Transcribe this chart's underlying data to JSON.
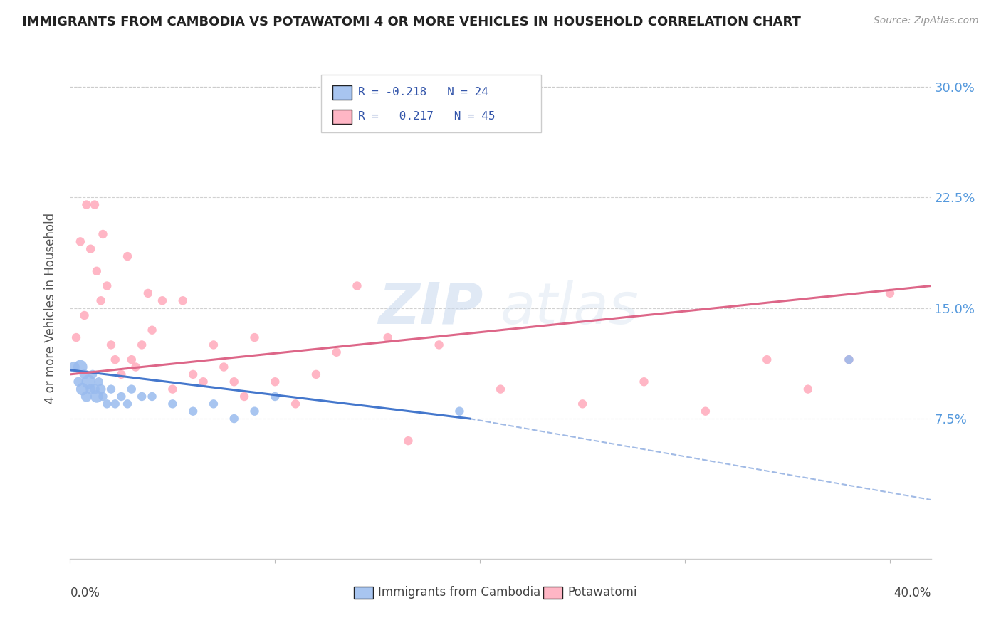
{
  "title": "IMMIGRANTS FROM CAMBODIA VS POTAWATOMI 4 OR MORE VEHICLES IN HOUSEHOLD CORRELATION CHART",
  "source_text": "Source: ZipAtlas.com",
  "ylabel": "4 or more Vehicles in Household",
  "xlim": [
    0.0,
    0.42
  ],
  "ylim": [
    -0.02,
    0.32
  ],
  "yticks": [
    0.075,
    0.15,
    0.225,
    0.3
  ],
  "ytick_labels": [
    "7.5%",
    "15.0%",
    "22.5%",
    "30.0%"
  ],
  "background_color": "#ffffff",
  "plot_bg_color": "#ffffff",
  "grid_color": "#cccccc",
  "blue_color": "#99bbee",
  "pink_color": "#ffaabb",
  "blue_line_color": "#4477cc",
  "pink_line_color": "#dd6688",
  "watermark": "ZIPatlas",
  "blue_points_x": [
    0.002,
    0.004,
    0.005,
    0.006,
    0.007,
    0.008,
    0.009,
    0.01,
    0.011,
    0.012,
    0.013,
    0.014,
    0.015,
    0.016,
    0.018,
    0.02,
    0.022,
    0.025,
    0.028,
    0.03,
    0.035,
    0.04,
    0.05,
    0.06,
    0.07,
    0.08,
    0.09,
    0.1,
    0.19,
    0.38
  ],
  "blue_points_y": [
    0.11,
    0.1,
    0.11,
    0.095,
    0.105,
    0.09,
    0.1,
    0.095,
    0.105,
    0.095,
    0.09,
    0.1,
    0.095,
    0.09,
    0.085,
    0.095,
    0.085,
    0.09,
    0.085,
    0.095,
    0.09,
    0.09,
    0.085,
    0.08,
    0.085,
    0.075,
    0.08,
    0.09,
    0.08,
    0.115
  ],
  "blue_sizes": [
    120,
    90,
    200,
    160,
    100,
    120,
    200,
    100,
    80,
    100,
    160,
    80,
    100,
    80,
    80,
    80,
    80,
    80,
    80,
    80,
    80,
    80,
    80,
    80,
    80,
    80,
    80,
    80,
    80,
    80
  ],
  "pink_points_x": [
    0.003,
    0.005,
    0.007,
    0.008,
    0.01,
    0.012,
    0.013,
    0.015,
    0.016,
    0.018,
    0.02,
    0.022,
    0.025,
    0.028,
    0.03,
    0.032,
    0.035,
    0.038,
    0.04,
    0.045,
    0.05,
    0.055,
    0.06,
    0.065,
    0.07,
    0.075,
    0.08,
    0.085,
    0.09,
    0.1,
    0.11,
    0.12,
    0.13,
    0.14,
    0.155,
    0.165,
    0.18,
    0.21,
    0.25,
    0.28,
    0.31,
    0.34,
    0.36,
    0.38,
    0.4
  ],
  "pink_points_y": [
    0.13,
    0.195,
    0.145,
    0.22,
    0.19,
    0.22,
    0.175,
    0.155,
    0.2,
    0.165,
    0.125,
    0.115,
    0.105,
    0.185,
    0.115,
    0.11,
    0.125,
    0.16,
    0.135,
    0.155,
    0.095,
    0.155,
    0.105,
    0.1,
    0.125,
    0.11,
    0.1,
    0.09,
    0.13,
    0.1,
    0.085,
    0.105,
    0.12,
    0.165,
    0.13,
    0.06,
    0.125,
    0.095,
    0.085,
    0.1,
    0.08,
    0.115,
    0.095,
    0.115,
    0.16
  ],
  "pink_sizes": [
    80,
    80,
    80,
    80,
    80,
    80,
    80,
    80,
    80,
    80,
    80,
    80,
    80,
    80,
    80,
    80,
    80,
    80,
    80,
    80,
    80,
    80,
    80,
    80,
    80,
    80,
    80,
    80,
    80,
    80,
    80,
    80,
    80,
    80,
    80,
    80,
    80,
    80,
    80,
    80,
    80,
    80,
    80,
    80,
    80
  ],
  "blue_line_x_start": 0.0,
  "blue_line_x_solid_end": 0.195,
  "blue_line_x_end": 0.42,
  "blue_line_y_start": 0.108,
  "blue_line_y_solid_end": 0.075,
  "blue_line_y_end": 0.02,
  "pink_line_x_start": 0.0,
  "pink_line_x_end": 0.42,
  "pink_line_y_start": 0.105,
  "pink_line_y_end": 0.165
}
